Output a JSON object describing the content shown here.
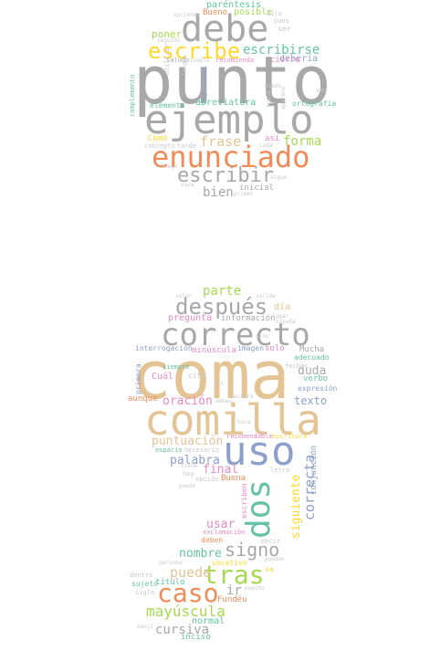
{
  "palette": {
    "gray": "#a8a8a8",
    "tan": "#e4c494",
    "orange": "#f08c5a",
    "teal": "#66c2a5",
    "green": "#a6d854",
    "blue": "#8da0cb",
    "pink": "#e78ac3",
    "yellow": "#ffd92f",
    "lightgray": "#c8c8c8"
  },
  "words": [
    {
      "text": "punto",
      "color": "gray"
    },
    {
      "text": "ejemplo",
      "color": "gray"
    },
    {
      "text": "debe",
      "color": "gray"
    },
    {
      "text": "enunciado",
      "color": "orange"
    },
    {
      "text": "escribe",
      "color": "yellow"
    },
    {
      "text": "escribir",
      "color": "gray"
    },
    {
      "text": "escribirse",
      "color": "teal"
    },
    {
      "text": "frase",
      "color": "tan"
    },
    {
      "text": "forma",
      "color": "green"
    },
    {
      "text": "bien",
      "color": "gray"
    },
    {
      "text": "poner",
      "color": "green"
    },
    {
      "text": "paréntesis",
      "color": "teal"
    },
    {
      "text": "posible",
      "color": "green"
    },
    {
      "text": "Bueno",
      "color": "orange"
    },
    {
      "text": "debería",
      "color": "blue"
    },
    {
      "text": "abreviatura",
      "color": "teal"
    },
    {
      "text": "cierre",
      "color": "pink"
    },
    {
      "text": "ortografía",
      "color": "teal"
    },
    {
      "text": "Como",
      "color": "yellow"
    },
    {
      "text": "así",
      "color": "pink"
    },
    {
      "text": "inicial",
      "color": "gray"
    },
    {
      "text": "elemento",
      "color": "teal"
    },
    {
      "text": "recomienda",
      "color": "pink"
    },
    {
      "text": "saludo",
      "color": "gray"
    },
    {
      "text": "opcional",
      "color": "blue"
    },
    {
      "text": "complemento",
      "color": "teal"
    },
    {
      "text": "coma",
      "color": "tan"
    },
    {
      "text": "comilla",
      "color": "tan"
    },
    {
      "text": "correcto",
      "color": "gray"
    },
    {
      "text": "después",
      "color": "gray"
    },
    {
      "text": "uso",
      "color": "blue"
    },
    {
      "text": "dos",
      "color": "teal"
    },
    {
      "text": "tras",
      "color": "green"
    },
    {
      "text": "caso",
      "color": "orange"
    },
    {
      "text": "signo",
      "color": "gray"
    },
    {
      "text": "parte",
      "color": "green"
    },
    {
      "text": "pregunta",
      "color": "pink"
    },
    {
      "text": "información",
      "color": "gray"
    },
    {
      "text": "día",
      "color": "tan"
    },
    {
      "text": "interrogación",
      "color": "blue"
    },
    {
      "text": "minúscula",
      "color": "pink"
    },
    {
      "text": "imagen",
      "color": "blue"
    },
    {
      "text": "solo",
      "color": "pink"
    },
    {
      "text": "Mucha",
      "color": "gray"
    },
    {
      "text": "duda",
      "color": "gray"
    },
    {
      "text": "adecuado",
      "color": "teal"
    },
    {
      "text": "verbo",
      "color": "teal"
    },
    {
      "text": "expresión",
      "color": "blue"
    },
    {
      "text": "texto",
      "color": "blue"
    },
    {
      "text": "Cuál",
      "color": "pink"
    },
    {
      "text": "oración",
      "color": "pink"
    },
    {
      "text": "aunque",
      "color": "orange"
    },
    {
      "text": "puntuación",
      "color": "tan"
    },
    {
      "text": "palabra",
      "color": "blue"
    },
    {
      "text": "final",
      "color": "pink"
    },
    {
      "text": "Buena",
      "color": "orange"
    },
    {
      "text": "correcta",
      "color": "blue"
    },
    {
      "text": "conjunción",
      "color": "blue"
    },
    {
      "text": "siguiente",
      "color": "yellow"
    },
    {
      "text": "usar",
      "color": "pink"
    },
    {
      "text": "nombre",
      "color": "teal"
    },
    {
      "text": "puede",
      "color": "tan"
    },
    {
      "text": "ir",
      "color": "gray"
    },
    {
      "text": "mayúscula",
      "color": "green"
    },
    {
      "text": "cursiva",
      "color": "gray"
    },
    {
      "text": "normal",
      "color": "teal"
    },
    {
      "text": "inciso",
      "color": "teal"
    },
    {
      "text": "título",
      "color": "teal"
    },
    {
      "text": "sujeto",
      "color": "teal"
    },
    {
      "text": "Fundéu",
      "color": "orange"
    },
    {
      "text": "siempre",
      "color": "teal"
    },
    {
      "text": "primera",
      "color": "blue"
    },
    {
      "text": "escriben",
      "color": "pink"
    },
    {
      "text": "recomendable",
      "color": "pink"
    },
    {
      "text": "escritura",
      "color": "yellow"
    },
    {
      "text": "vocativo",
      "color": "yellow"
    },
    {
      "text": "exclamación",
      "color": "pink"
    },
    {
      "text": "deben",
      "color": "orange"
    },
    {
      "text": "cita",
      "color": "lightgray"
    },
    {
      "text": "hora",
      "color": "lightgray"
    },
    {
      "text": "ambas",
      "color": "lightgray"
    },
    {
      "text": "espacio",
      "color": "teal"
    },
    {
      "text": "necesario",
      "color": "lightgray"
    },
    {
      "text": "emoji",
      "color": "lightgray"
    },
    {
      "text": "sigla",
      "color": "lightgray"
    },
    {
      "text": "dentro",
      "color": "lightgray"
    },
    {
      "text": "persona",
      "color": "lightgray"
    },
    {
      "text": "puesto",
      "color": "lightgray"
    },
    {
      "text": "va",
      "color": "yellow"
    },
    {
      "text": "fechas",
      "color": "lightgray"
    },
    {
      "text": "letra",
      "color": "lightgray"
    },
    {
      "text": "hoy",
      "color": "lightgray"
    },
    {
      "text": "opción",
      "color": "lightgray"
    },
    {
      "text": "tiene",
      "color": "lightgray"
    },
    {
      "text": "valor",
      "color": "lightgray"
    },
    {
      "text": "valida",
      "color": "lightgray"
    },
    {
      "text": "lugar",
      "color": "lightgray"
    },
    {
      "text": "España",
      "color": "lightgray"
    },
    {
      "text": "decir",
      "color": "lightgray"
    },
    {
      "text": "pueden",
      "color": "lightgray"
    },
    {
      "text": "sino",
      "color": "lightgray"
    },
    {
      "text": "lectura",
      "color": "lightgray"
    },
    {
      "text": "seguido",
      "color": "lightgray"
    },
    {
      "text": "opciones",
      "color": "lightgray"
    },
    {
      "text": "ser",
      "color": "lightgray"
    },
    {
      "text": "pues",
      "color": "lightgray"
    },
    {
      "text": "dijo",
      "color": "lightgray"
    },
    {
      "text": "simple",
      "color": "lightgray"
    },
    {
      "text": "utilizar",
      "color": "lightgray"
    },
    {
      "text": "lengua",
      "color": "lightgray"
    },
    {
      "text": "cada",
      "color": "lightgray"
    },
    {
      "text": "tarde",
      "color": "lightgray"
    },
    {
      "text": "luego",
      "color": "lightgray"
    },
    {
      "text": "sigue",
      "color": "lightgray"
    },
    {
      "text": "primer",
      "color": "lightgray"
    },
    {
      "text": "vaya",
      "color": "lightgray"
    },
    {
      "text": "concepto",
      "color": "lightgray"
    },
    {
      "text": "mismo",
      "color": "lightgray"
    },
    {
      "text": "trata",
      "color": "lightgray"
    },
    {
      "text": "aparece",
      "color": "lightgray"
    },
    {
      "text": "vez",
      "color": "lightgray"
    },
    {
      "text": "uso",
      "color": "lightgray"
    },
    {
      "text": "puede",
      "color": "lightgray"
    }
  ]
}
